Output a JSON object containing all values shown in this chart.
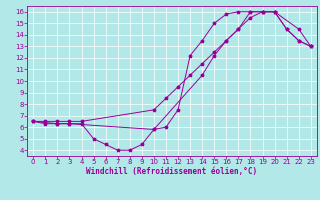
{
  "xlabel": "Windchill (Refroidissement éolien,°C)",
  "bg_color": "#b2e8e8",
  "line_color": "#990099",
  "grid_color": "#ffffff",
  "xlim": [
    -0.5,
    23.5
  ],
  "ylim": [
    3.5,
    16.5
  ],
  "xticks": [
    0,
    1,
    2,
    3,
    4,
    5,
    6,
    7,
    8,
    9,
    10,
    11,
    12,
    13,
    14,
    15,
    16,
    17,
    18,
    19,
    20,
    21,
    22,
    23
  ],
  "yticks": [
    4,
    5,
    6,
    7,
    8,
    9,
    10,
    11,
    12,
    13,
    14,
    15,
    16
  ],
  "line1_x": [
    0,
    1,
    2,
    3,
    4,
    10,
    11,
    12,
    13,
    14,
    15,
    16,
    17,
    18,
    19,
    20,
    21,
    22,
    23
  ],
  "line1_y": [
    6.5,
    6.5,
    6.5,
    6.5,
    6.5,
    7.5,
    8.5,
    9.5,
    10.5,
    11.5,
    12.5,
    13.5,
    14.5,
    15.5,
    16.0,
    16.0,
    14.5,
    13.5,
    13.0
  ],
  "line2_x": [
    0,
    1,
    2,
    3,
    4,
    5,
    6,
    7,
    8,
    9,
    10,
    11,
    12,
    13,
    14,
    15,
    16,
    17,
    18,
    19,
    20,
    21,
    22,
    23
  ],
  "line2_y": [
    6.5,
    6.3,
    6.3,
    6.3,
    6.3,
    5.0,
    4.5,
    4.0,
    4.0,
    4.5,
    5.8,
    6.0,
    7.5,
    12.2,
    13.5,
    15.0,
    15.8,
    16.0,
    16.0,
    16.0,
    16.0,
    14.5,
    13.5,
    13.0
  ],
  "line3_x": [
    0,
    2,
    3,
    10,
    14,
    15,
    16,
    17,
    18,
    19,
    20,
    22,
    23
  ],
  "line3_y": [
    6.5,
    6.3,
    6.3,
    5.8,
    10.5,
    12.2,
    13.5,
    14.5,
    16.0,
    16.0,
    16.0,
    14.5,
    13.0
  ],
  "tick_fontsize": 5.0,
  "xlabel_fontsize": 5.5,
  "marker": "*",
  "markersize": 2.5,
  "linewidth": 0.7
}
